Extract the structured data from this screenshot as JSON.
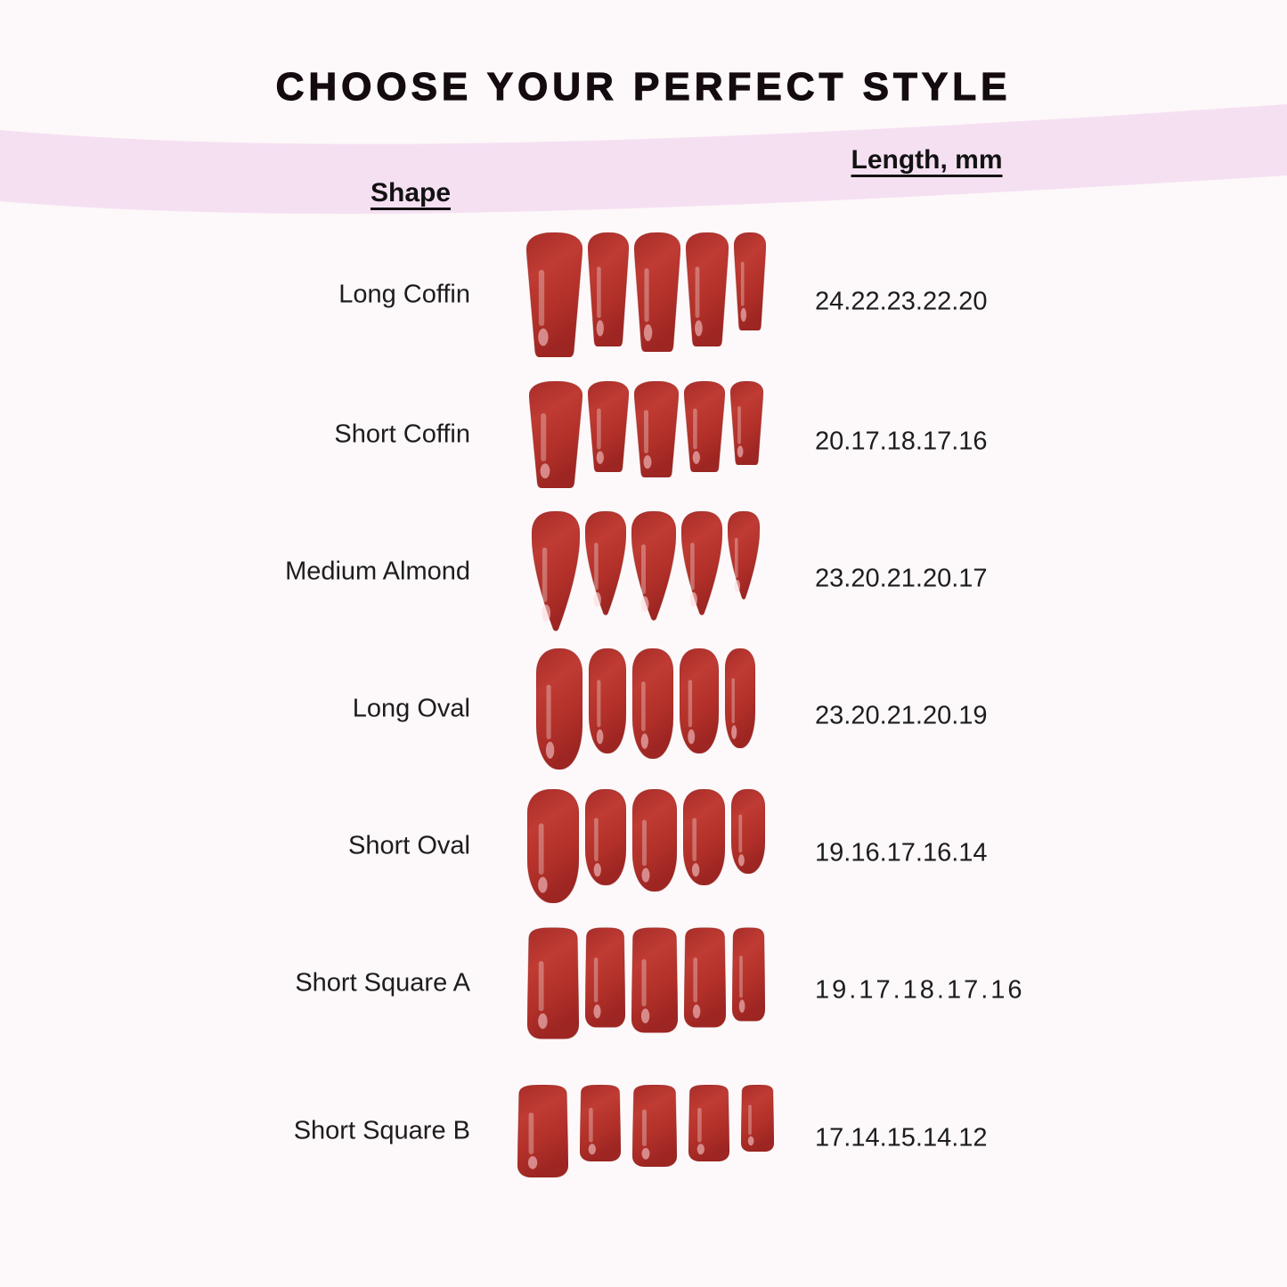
{
  "page": {
    "title": "CHOOSE YOUR PERFECT STYLE"
  },
  "colors": {
    "background": "#fdf8f9",
    "band": "#f5e0f2",
    "nail_red": "#b5332e",
    "nail_red_dark": "#9d2522",
    "nail_red_light": "#c2413a",
    "text": "#1d1d1d"
  },
  "table": {
    "shape_header": "Shape",
    "length_header": "Length, mm",
    "rows": [
      {
        "shape": "Long Coffin",
        "lengths": "24.22.23.22.20",
        "nail_shape": "coffin",
        "gap": 6,
        "tracking": false,
        "nails": [
          [
            63,
            140
          ],
          [
            46,
            128
          ],
          [
            52,
            134
          ],
          [
            48,
            128
          ],
          [
            36,
            110
          ]
        ]
      },
      {
        "shape": "Short Coffin",
        "lengths": "20.17.18.17.16",
        "nail_shape": "coffin",
        "gap": 6,
        "tracking": false,
        "nails": [
          [
            60,
            120
          ],
          [
            46,
            102
          ],
          [
            50,
            108
          ],
          [
            46,
            102
          ],
          [
            37,
            94
          ]
        ]
      },
      {
        "shape": "Medium Almond",
        "lengths": "23.20.21.20.17",
        "nail_shape": "almond",
        "gap": 6,
        "tracking": false,
        "nails": [
          [
            54,
            136
          ],
          [
            46,
            118
          ],
          [
            50,
            124
          ],
          [
            46,
            118
          ],
          [
            36,
            100
          ]
        ]
      },
      {
        "shape": "Long Oval",
        "lengths": "23.20.21.20.19",
        "nail_shape": "oval",
        "gap": 7,
        "tracking": false,
        "nails": [
          [
            52,
            136
          ],
          [
            42,
            118
          ],
          [
            46,
            124
          ],
          [
            44,
            118
          ],
          [
            34,
            112
          ]
        ]
      },
      {
        "shape": "Short Oval",
        "lengths": "19.16.17.16.14",
        "nail_shape": "oval",
        "gap": 7,
        "tracking": false,
        "nails": [
          [
            58,
            128
          ],
          [
            46,
            108
          ],
          [
            50,
            115
          ],
          [
            47,
            108
          ],
          [
            38,
            95
          ]
        ]
      },
      {
        "shape": "Short Square A",
        "lengths": "19.17.18.17.16",
        "nail_shape": "square",
        "gap": 7,
        "tracking": true,
        "nails": [
          [
            58,
            125
          ],
          [
            45,
            112
          ],
          [
            52,
            118
          ],
          [
            47,
            112
          ],
          [
            37,
            105
          ]
        ]
      },
      {
        "shape": "Short Square B",
        "lengths": "17.14.15.14.12",
        "nail_shape": "square",
        "gap": 13,
        "tracking": false,
        "nails": [
          [
            57,
            104
          ],
          [
            46,
            86
          ],
          [
            50,
            92
          ],
          [
            46,
            86
          ],
          [
            37,
            75
          ]
        ]
      }
    ]
  },
  "chart_data": {
    "type": "table",
    "title": "CHOOSE YOUR PERFECT STYLE",
    "columns": [
      "Shape",
      "Length, mm"
    ],
    "rows": [
      {
        "shape": "Long Coffin",
        "lengths_mm": [
          24,
          22,
          23,
          22,
          20
        ]
      },
      {
        "shape": "Short Coffin",
        "lengths_mm": [
          20,
          17,
          18,
          17,
          16
        ]
      },
      {
        "shape": "Medium Almond",
        "lengths_mm": [
          23,
          20,
          21,
          20,
          17
        ]
      },
      {
        "shape": "Long Oval",
        "lengths_mm": [
          23,
          20,
          21,
          20,
          19
        ]
      },
      {
        "shape": "Short Oval",
        "lengths_mm": [
          19,
          16,
          17,
          16,
          14
        ]
      },
      {
        "shape": "Short Square A",
        "lengths_mm": [
          19,
          17,
          18,
          17,
          16
        ]
      },
      {
        "shape": "Short Square B",
        "lengths_mm": [
          17,
          14,
          15,
          14,
          12
        ]
      }
    ]
  }
}
